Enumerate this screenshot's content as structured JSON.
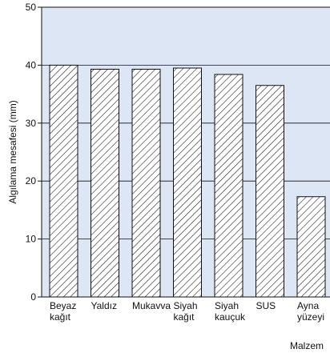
{
  "chart_data": {
    "type": "bar",
    "title": "",
    "xlabel": "Malzem",
    "ylabel": "Algılama mesafesi (mm)",
    "ylim": [
      0,
      50
    ],
    "yticks": [
      0,
      10,
      20,
      30,
      40,
      50
    ],
    "grid": true,
    "bar_fill": "hatched",
    "colors": {
      "plot_background": "#dde6f5",
      "bar_fill": "#ffffff",
      "stroke": "#111111"
    },
    "categories": [
      [
        "Beyaz",
        "kağıt"
      ],
      [
        "Yaldız"
      ],
      [
        "Mukavva"
      ],
      [
        "Siyah",
        "kağıt"
      ],
      [
        "Siyah",
        "kauçuk"
      ],
      [
        "SUS"
      ],
      [
        "Ayna",
        "yüzeyi"
      ]
    ],
    "values": [
      40,
      39.3,
      39.3,
      39.5,
      38.4,
      36.5,
      17.3
    ]
  }
}
